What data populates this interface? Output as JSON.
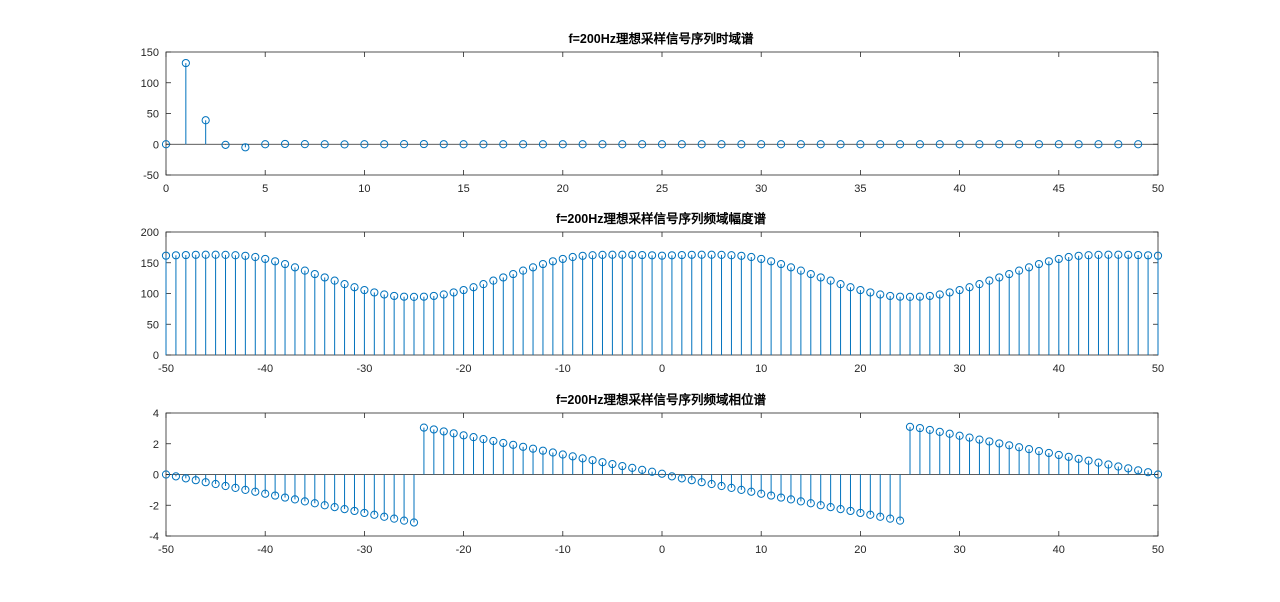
{
  "colors": {
    "series": "#0072BD",
    "axis": "#262626",
    "background": "#ffffff"
  },
  "chart_data": [
    {
      "type": "stem",
      "title": "f=200Hz理想采样信号序列时域谱",
      "xlim": [
        0,
        50
      ],
      "ylim": [
        -50,
        150
      ],
      "xticks": [
        0,
        5,
        10,
        15,
        20,
        25,
        30,
        35,
        40,
        45,
        50
      ],
      "yticks": [
        -50,
        0,
        50,
        100,
        150
      ],
      "x": [
        0,
        1,
        2,
        3,
        4,
        5,
        6,
        7,
        8,
        9,
        10,
        11,
        12,
        13,
        14,
        15,
        16,
        17,
        18,
        19,
        20,
        21,
        22,
        23,
        24,
        25,
        26,
        27,
        28,
        29,
        30,
        31,
        32,
        33,
        34,
        35,
        36,
        37,
        38,
        39,
        40,
        41,
        42,
        43,
        44,
        45,
        46,
        47,
        48,
        49
      ],
      "y": [
        0,
        132,
        39,
        -1,
        -5,
        0,
        0.5,
        0.2,
        0,
        -0.2,
        0,
        0,
        0.2,
        0.3,
        0.1,
        0,
        0,
        0,
        0,
        0,
        0,
        0,
        0,
        0,
        0,
        0,
        0,
        0,
        0,
        0,
        0,
        0,
        0,
        0,
        0,
        0,
        0,
        0,
        0,
        0,
        0,
        0,
        0,
        0,
        0,
        0,
        0,
        0,
        0,
        0
      ]
    },
    {
      "type": "stem",
      "title": "f=200Hz理想采样信号序列频域幅度谱",
      "xlim": [
        -50,
        50
      ],
      "ylim": [
        0,
        200
      ],
      "xticks": [
        -50,
        -40,
        -30,
        -20,
        -10,
        0,
        10,
        20,
        30,
        40,
        50
      ],
      "yticks": [
        0,
        50,
        100,
        150,
        200
      ],
      "x": [
        -50,
        -49,
        -48,
        -47,
        -46,
        -45,
        -44,
        -43,
        -42,
        -41,
        -40,
        -39,
        -38,
        -37,
        -36,
        -35,
        -34,
        -33,
        -32,
        -31,
        -30,
        -29,
        -28,
        -27,
        -26,
        -25,
        -24,
        -23,
        -22,
        -21,
        -20,
        -19,
        -18,
        -17,
        -16,
        -15,
        -14,
        -13,
        -12,
        -11,
        -10,
        -9,
        -8,
        -7,
        -6,
        -5,
        -4,
        -3,
        -2,
        -1,
        0,
        1,
        2,
        3,
        4,
        5,
        6,
        7,
        8,
        9,
        10,
        11,
        12,
        13,
        14,
        15,
        16,
        17,
        18,
        19,
        20,
        21,
        22,
        23,
        24,
        25,
        26,
        27,
        28,
        29,
        30,
        31,
        32,
        33,
        34,
        35,
        36,
        37,
        38,
        39,
        40,
        41,
        42,
        43,
        44,
        45,
        46,
        47,
        48,
        49,
        50
      ],
      "y": [
        161.5,
        162.1,
        162.5,
        162.9,
        163.0,
        163.0,
        162.8,
        162.2,
        161.3,
        159.3,
        156.2,
        152.3,
        147.9,
        142.5,
        137.2,
        131.6,
        126.1,
        120.9,
        115.2,
        110.2,
        105.6,
        101.7,
        98.4,
        96.0,
        94.8,
        94.5,
        94.8,
        96.0,
        98.4,
        101.7,
        105.6,
        110.2,
        115.2,
        120.9,
        126.1,
        131.6,
        137.2,
        142.5,
        147.9,
        152.3,
        156.2,
        159.3,
        161.3,
        162.2,
        162.8,
        163.0,
        163.0,
        162.9,
        162.5,
        162.1,
        161.5,
        162.1,
        162.5,
        162.9,
        163.0,
        163.0,
        162.8,
        162.2,
        161.3,
        159.3,
        156.2,
        152.3,
        147.9,
        142.5,
        137.2,
        131.6,
        126.1,
        120.9,
        115.2,
        110.2,
        105.6,
        101.7,
        98.4,
        96.0,
        94.8,
        94.5,
        94.8,
        96.0,
        98.4,
        101.7,
        105.6,
        110.2,
        115.2,
        120.9,
        126.1,
        131.6,
        137.2,
        142.5,
        147.9,
        152.3,
        156.2,
        159.3,
        161.3,
        162.2,
        162.8,
        163.0,
        163.0,
        162.9,
        162.5,
        162.1,
        161.5
      ]
    },
    {
      "type": "stem",
      "title": "f=200Hz理想采样信号序列频域相位谱",
      "xlim": [
        -50,
        50
      ],
      "ylim": [
        -4,
        4
      ],
      "xticks": [
        -50,
        -40,
        -30,
        -20,
        -10,
        0,
        10,
        20,
        30,
        40,
        50
      ],
      "yticks": [
        -4,
        -2,
        0,
        2,
        4
      ],
      "x": [
        -50,
        -49,
        -48,
        -47,
        -46,
        -45,
        -44,
        -43,
        -42,
        -41,
        -40,
        -39,
        -38,
        -37,
        -36,
        -35,
        -34,
        -33,
        -32,
        -31,
        -30,
        -29,
        -28,
        -27,
        -26,
        -25,
        -24,
        -23,
        -22,
        -21,
        -20,
        -19,
        -18,
        -17,
        -16,
        -15,
        -14,
        -13,
        -12,
        -11,
        -10,
        -9,
        -8,
        -7,
        -6,
        -5,
        -4,
        -3,
        -2,
        -1,
        0,
        1,
        2,
        3,
        4,
        5,
        6,
        7,
        8,
        9,
        10,
        11,
        12,
        13,
        14,
        15,
        16,
        17,
        18,
        19,
        20,
        21,
        22,
        23,
        24,
        25,
        26,
        27,
        28,
        29,
        30,
        31,
        32,
        33,
        34,
        35,
        36,
        37,
        38,
        39,
        40,
        41,
        42,
        43,
        44,
        45,
        46,
        47,
        48,
        49,
        50
      ],
      "y": [
        0.0,
        -0.12,
        -0.25,
        -0.37,
        -0.5,
        -0.62,
        -0.75,
        -0.87,
        -1.0,
        -1.12,
        -1.25,
        -1.37,
        -1.5,
        -1.62,
        -1.75,
        -1.87,
        -2.0,
        -2.12,
        -2.25,
        -2.37,
        -2.5,
        -2.62,
        -2.75,
        -2.87,
        -3.0,
        -3.12,
        3.05,
        2.93,
        2.8,
        2.68,
        2.55,
        2.43,
        2.3,
        2.18,
        2.05,
        1.93,
        1.8,
        1.68,
        1.55,
        1.43,
        1.3,
        1.18,
        1.05,
        0.93,
        0.8,
        0.68,
        0.55,
        0.43,
        0.3,
        0.18,
        0.05,
        -0.12,
        -0.25,
        -0.37,
        -0.5,
        -0.62,
        -0.75,
        -0.87,
        -1.0,
        -1.12,
        -1.25,
        -1.37,
        -1.5,
        -1.62,
        -1.75,
        -1.87,
        -2.0,
        -2.12,
        -2.25,
        -2.37,
        -2.5,
        -2.62,
        -2.75,
        -2.87,
        -3.0,
        3.1,
        3.02,
        2.9,
        2.77,
        2.65,
        2.52,
        2.4,
        2.27,
        2.15,
        2.02,
        1.9,
        1.77,
        1.65,
        1.52,
        1.4,
        1.27,
        1.15,
        1.02,
        0.9,
        0.77,
        0.65,
        0.52,
        0.4,
        0.27,
        0.15,
        0.0
      ]
    }
  ]
}
